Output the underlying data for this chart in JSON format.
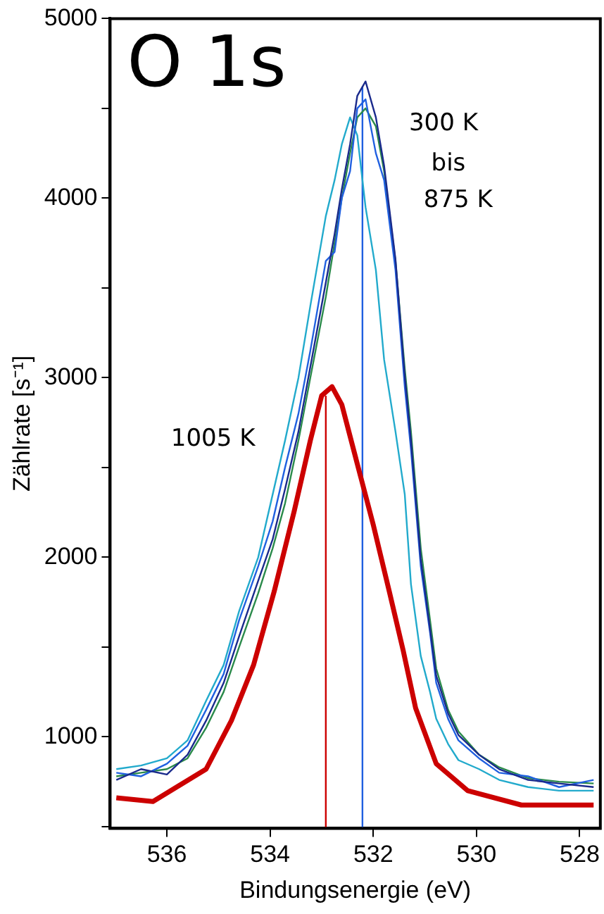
{
  "chart_data": {
    "type": "line",
    "title": "O 1s",
    "xlabel": "Bindungsenergie (eV)",
    "ylabel": "Zählrate [s⁻¹]",
    "xlim": [
      537.1,
      527.6
    ],
    "xticks": [
      536,
      534,
      532,
      530,
      528
    ],
    "ylim": [
      490,
      5000
    ],
    "yticks": [
      {
        "value": 500,
        "label": null
      },
      1000,
      {
        "value": 1500,
        "label": null
      },
      2000,
      {
        "value": 2500,
        "label": null
      },
      3000,
      {
        "value": 3500,
        "label": null
      },
      4000,
      {
        "value": 4500,
        "label": null
      },
      5000
    ],
    "grid": false,
    "legend": false,
    "marker": "none",
    "line_style": "solid",
    "series": [
      {
        "color": "#1a2a8c",
        "x": [
          536.98,
          536.5,
          536.0,
          535.6,
          535.24,
          534.9,
          534.6,
          534.23,
          533.95,
          533.71,
          533.45,
          533.22,
          532.92,
          532.75,
          532.61,
          532.45,
          532.31,
          532.15,
          531.95,
          531.79,
          531.57,
          531.39,
          531.27,
          531.08,
          530.9,
          530.78,
          530.55,
          530.35,
          529.95,
          529.56,
          529.0,
          528.4,
          527.73
        ],
        "values": [
          760,
          820,
          790,
          900,
          1090,
          1300,
          1560,
          1870,
          2100,
          2380,
          2700,
          3060,
          3530,
          3800,
          4050,
          4300,
          4570,
          4650,
          4450,
          4180,
          3660,
          3010,
          2650,
          1990,
          1600,
          1340,
          1130,
          1010,
          900,
          820,
          760,
          740,
          720
        ]
      },
      {
        "color": "#2060e0",
        "x": [
          536.98,
          536.5,
          536.0,
          535.6,
          535.24,
          534.9,
          534.6,
          534.23,
          533.95,
          533.71,
          533.45,
          533.22,
          532.92,
          532.75,
          532.61,
          532.45,
          532.31,
          532.15,
          531.95,
          531.79,
          531.57,
          531.39,
          531.27,
          531.08,
          530.9,
          530.78,
          530.55,
          530.35,
          529.95,
          529.56,
          529.0,
          528.4,
          527.73
        ],
        "values": [
          800,
          780,
          850,
          950,
          1150,
          1350,
          1650,
          1950,
          2200,
          2500,
          2800,
          3150,
          3650,
          3700,
          4000,
          4150,
          4500,
          4550,
          4250,
          4100,
          3600,
          2950,
          2600,
          1950,
          1580,
          1300,
          1100,
          980,
          880,
          800,
          780,
          720,
          760
        ]
      },
      {
        "color": "#2a8a4a",
        "x": [
          536.98,
          536.5,
          536.0,
          535.6,
          535.24,
          534.9,
          534.6,
          534.23,
          533.95,
          533.71,
          533.45,
          533.22,
          532.92,
          532.75,
          532.61,
          532.45,
          532.31,
          532.15,
          531.95,
          531.79,
          531.57,
          531.39,
          531.27,
          531.08,
          530.9,
          530.78,
          530.55,
          530.35,
          529.95,
          529.56,
          529.0,
          528.4,
          527.73
        ],
        "values": [
          780,
          800,
          820,
          880,
          1050,
          1250,
          1500,
          1800,
          2050,
          2300,
          2650,
          3000,
          3450,
          3750,
          4000,
          4250,
          4450,
          4500,
          4400,
          4150,
          3650,
          3050,
          2700,
          2050,
          1650,
          1380,
          1150,
          1030,
          900,
          830,
          770,
          750,
          740
        ]
      },
      {
        "color": "#22aacc",
        "x": [
          536.98,
          536.5,
          536.0,
          535.6,
          535.24,
          534.9,
          534.6,
          534.23,
          533.95,
          533.71,
          533.45,
          533.22,
          532.92,
          532.75,
          532.61,
          532.45,
          532.31,
          532.15,
          531.95,
          531.79,
          531.57,
          531.39,
          531.27,
          531.08,
          530.9,
          530.78,
          530.55,
          530.35,
          529.95,
          529.56,
          529.0,
          528.4,
          527.73
        ],
        "values": [
          820,
          840,
          880,
          980,
          1200,
          1400,
          1700,
          2000,
          2350,
          2650,
          3000,
          3400,
          3900,
          4100,
          4300,
          4450,
          4350,
          3950,
          3600,
          3100,
          2700,
          2350,
          1850,
          1450,
          1250,
          1100,
          960,
          870,
          820,
          760,
          720,
          700,
          700
        ]
      },
      {
        "color": "#cc0000",
        "x": [
          536.98,
          536.27,
          535.24,
          534.75,
          534.32,
          533.92,
          533.53,
          533.22,
          533.0,
          532.8,
          532.61,
          532.31,
          532.0,
          531.69,
          531.42,
          531.18,
          530.78,
          530.17,
          529.13,
          527.73
        ],
        "values": [
          660,
          640,
          820,
          1090,
          1400,
          1810,
          2260,
          2650,
          2900,
          2950,
          2850,
          2520,
          2180,
          1810,
          1480,
          1160,
          850,
          700,
          620,
          620
        ]
      },
      {
        "color": "#cc0000",
        "x": [
          532.92,
          532.92
        ],
        "values": [
          490,
          2900
        ]
      },
      {
        "color": "#2060e0",
        "x": [
          532.21,
          532.21
        ],
        "values": [
          490,
          4620
        ]
      }
    ],
    "annotations": [
      "300 K",
      "bis",
      "875 K",
      "1005 K"
    ]
  }
}
